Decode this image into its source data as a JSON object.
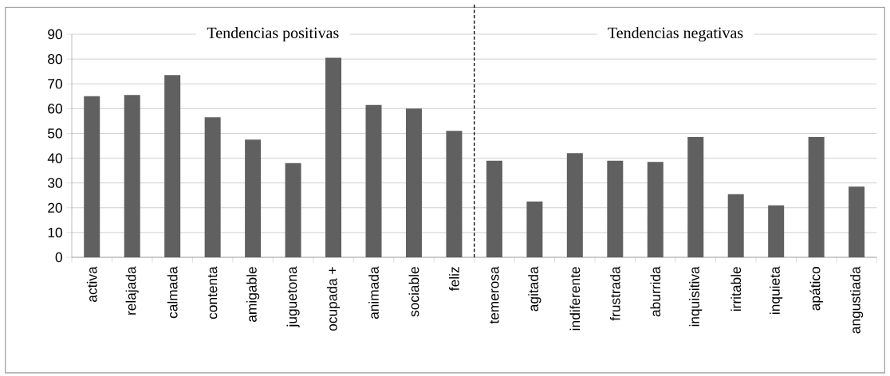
{
  "chart_data": {
    "type": "bar",
    "categories": [
      "activa",
      "relajada",
      "calmada",
      "contenta",
      "amigable",
      "juguetona",
      "ocupada +",
      "animada",
      "sociable",
      "feliz",
      "temerosa",
      "agitada",
      "indiferente",
      "frustrada",
      "aburrida",
      "inquisitiva",
      "irritable",
      "inquieta",
      "apático",
      "angustiada"
    ],
    "values": [
      65,
      65.5,
      73.5,
      56.5,
      47.5,
      38,
      80.5,
      61.5,
      60,
      51,
      39,
      22.5,
      42,
      39,
      38.5,
      48.5,
      25.5,
      21,
      48.5,
      28.5
    ],
    "color": "#606060",
    "ylim": [
      0,
      90
    ],
    "yticks": [
      0,
      10,
      20,
      30,
      40,
      50,
      60,
      70,
      80,
      90
    ],
    "grid": "y",
    "annotations": [
      "Tendencias positivas",
      "Tendencias negativas"
    ]
  }
}
